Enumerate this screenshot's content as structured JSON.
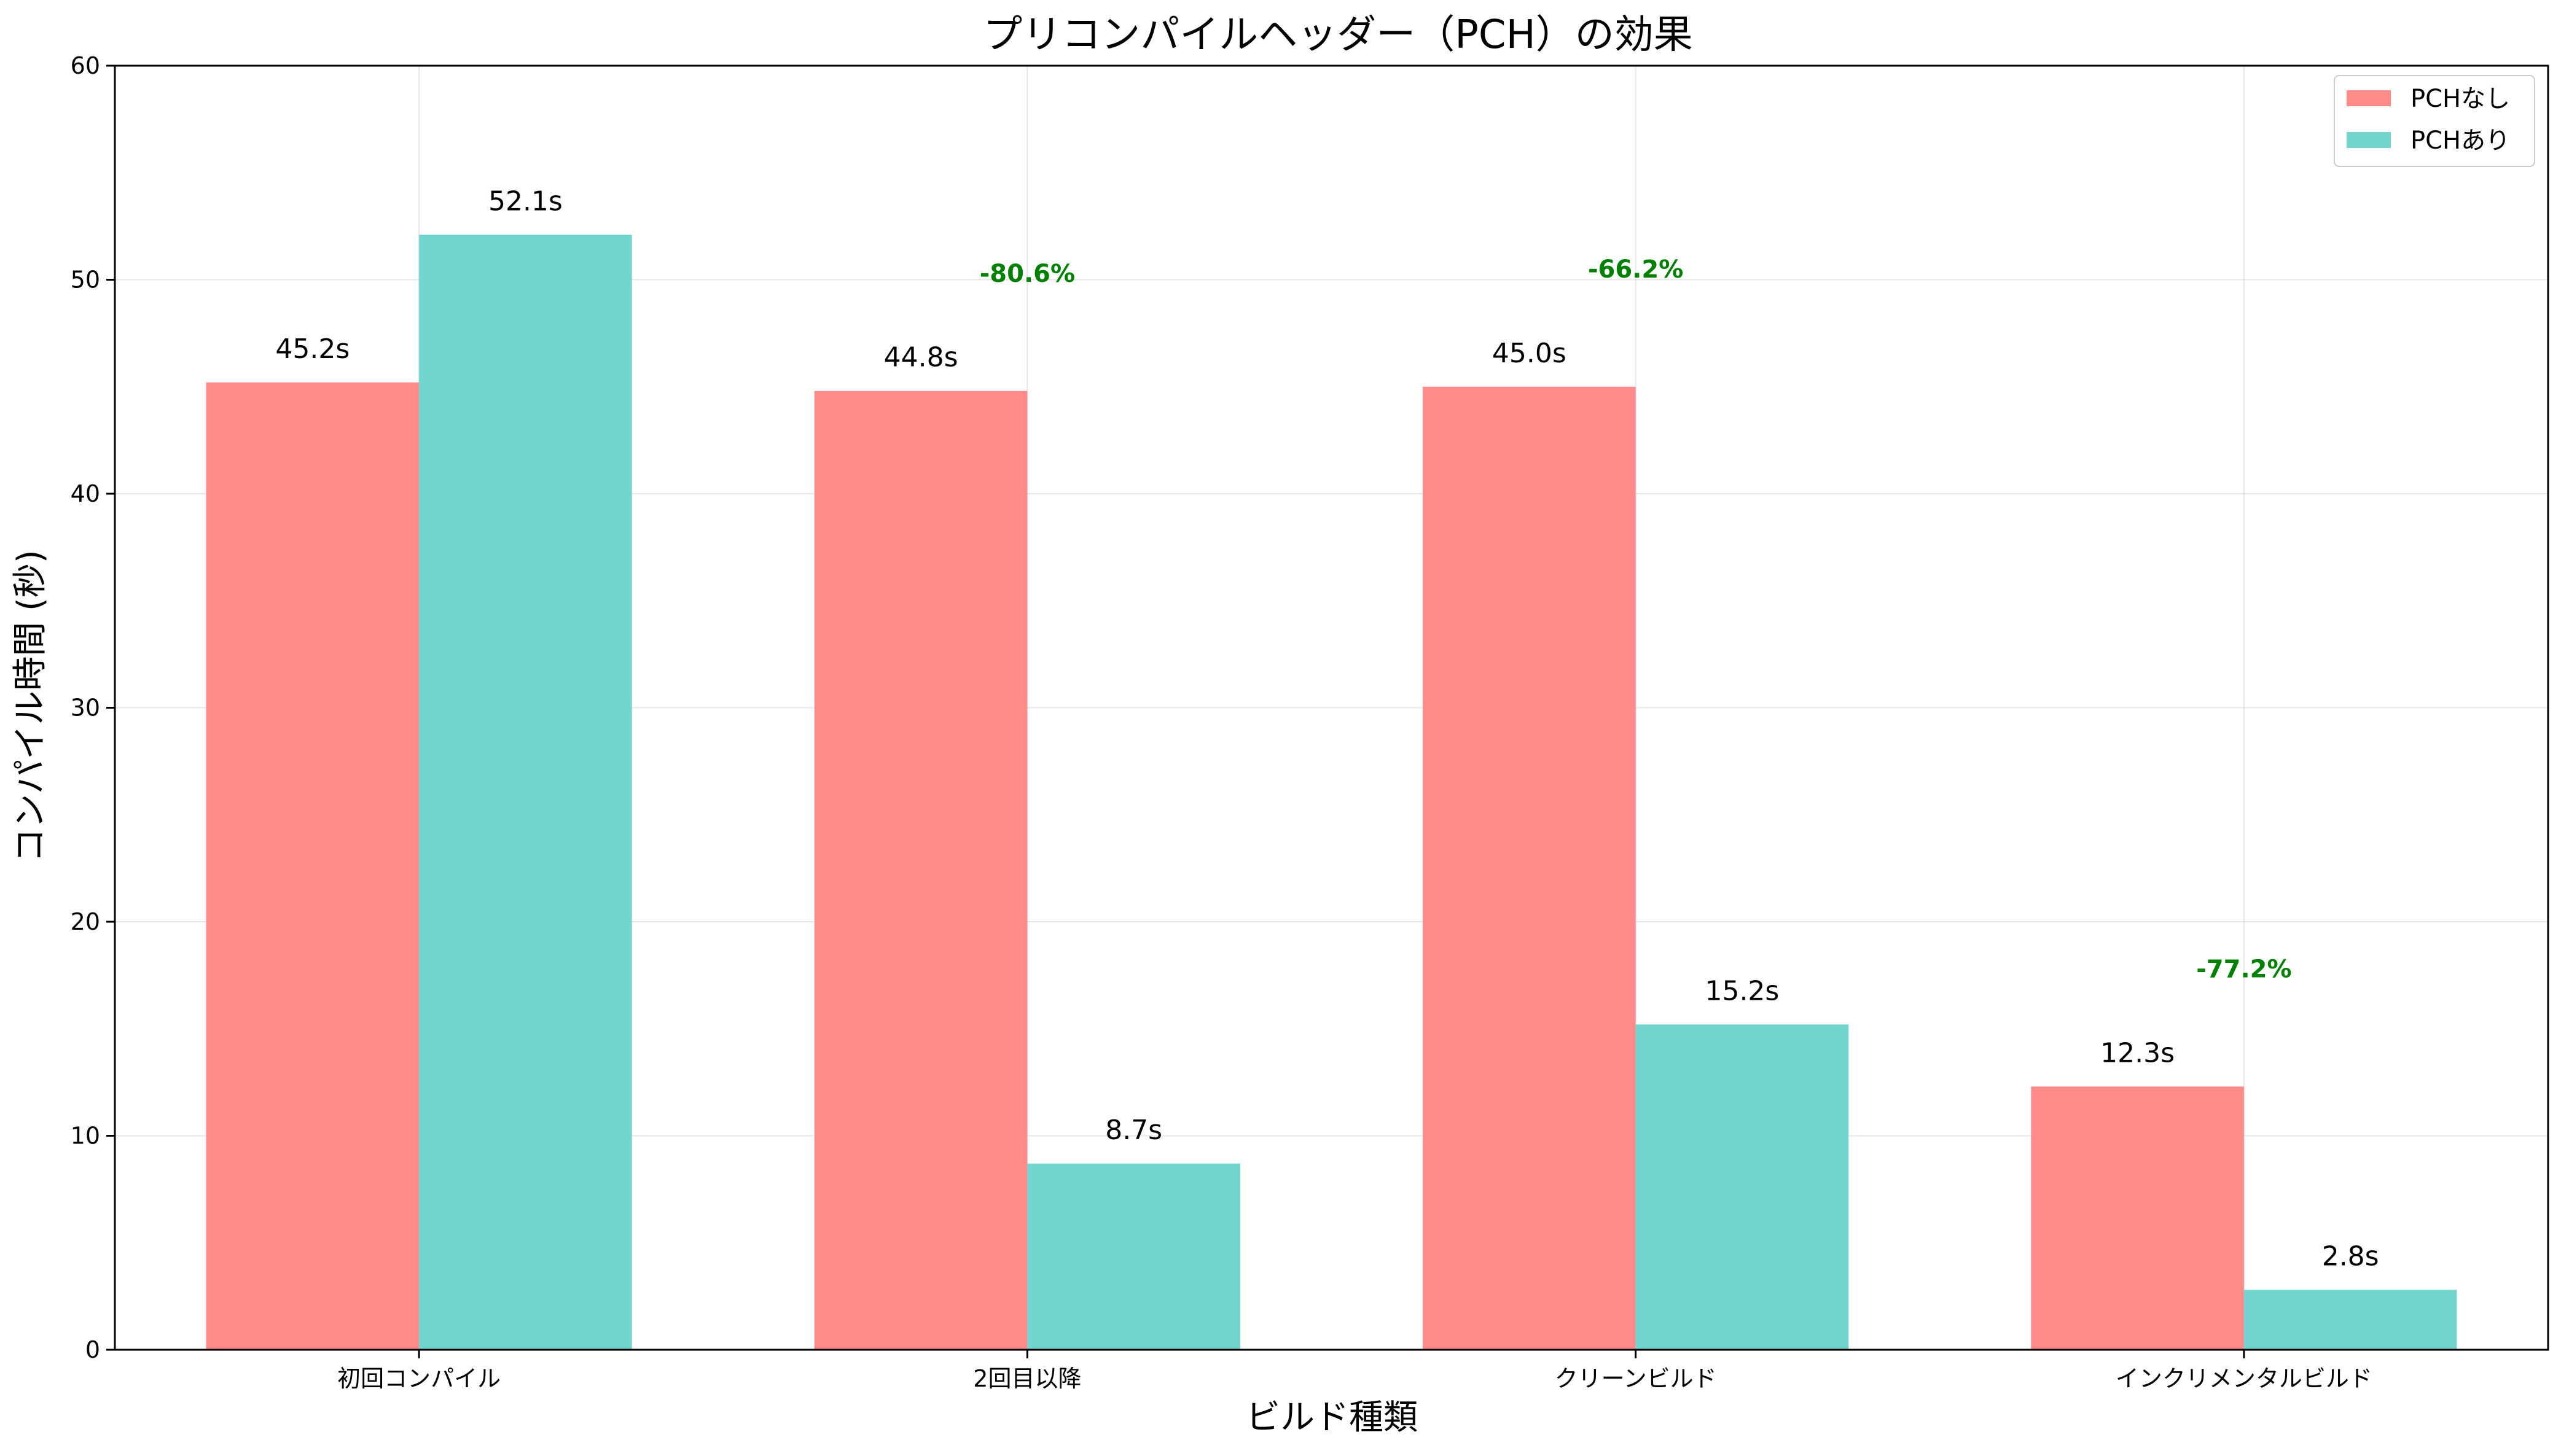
{
  "chart_data": {
    "type": "bar",
    "title": "プリコンパイルヘッダー（PCH）の効果",
    "xlabel": "ビルド種類",
    "ylabel": "コンパイル時間 (秒)",
    "categories": [
      "初回コンパイル",
      "2回目以降",
      "クリーンビルド",
      "インクリメンタルビルド"
    ],
    "series": [
      {
        "name": "PCHなし",
        "values": [
          45.2,
          44.8,
          45.0,
          12.3
        ],
        "labels": [
          "45.2s",
          "44.8s",
          "45.0s",
          "12.3s"
        ],
        "color": "#FF8A8A"
      },
      {
        "name": "PCHあり",
        "values": [
          52.1,
          8.7,
          15.2,
          2.8
        ],
        "labels": [
          "52.1s",
          "8.7s",
          "15.2s",
          "2.8s"
        ],
        "color": "#73D6CE"
      }
    ],
    "annotations": [
      {
        "category": "2回目以降",
        "text": "-80.6%",
        "y": 50.3
      },
      {
        "category": "クリーンビルド",
        "text": "-66.2%",
        "y": 50.5
      },
      {
        "category": "インクリメンタルビルド",
        "text": "-77.2%",
        "y": 17.8
      }
    ],
    "ylim": [
      0,
      60
    ],
    "yticks": [
      0,
      10,
      20,
      30,
      40,
      50,
      60
    ],
    "grid": true,
    "legend_position": "top-right",
    "annotation_color": "#008000"
  }
}
